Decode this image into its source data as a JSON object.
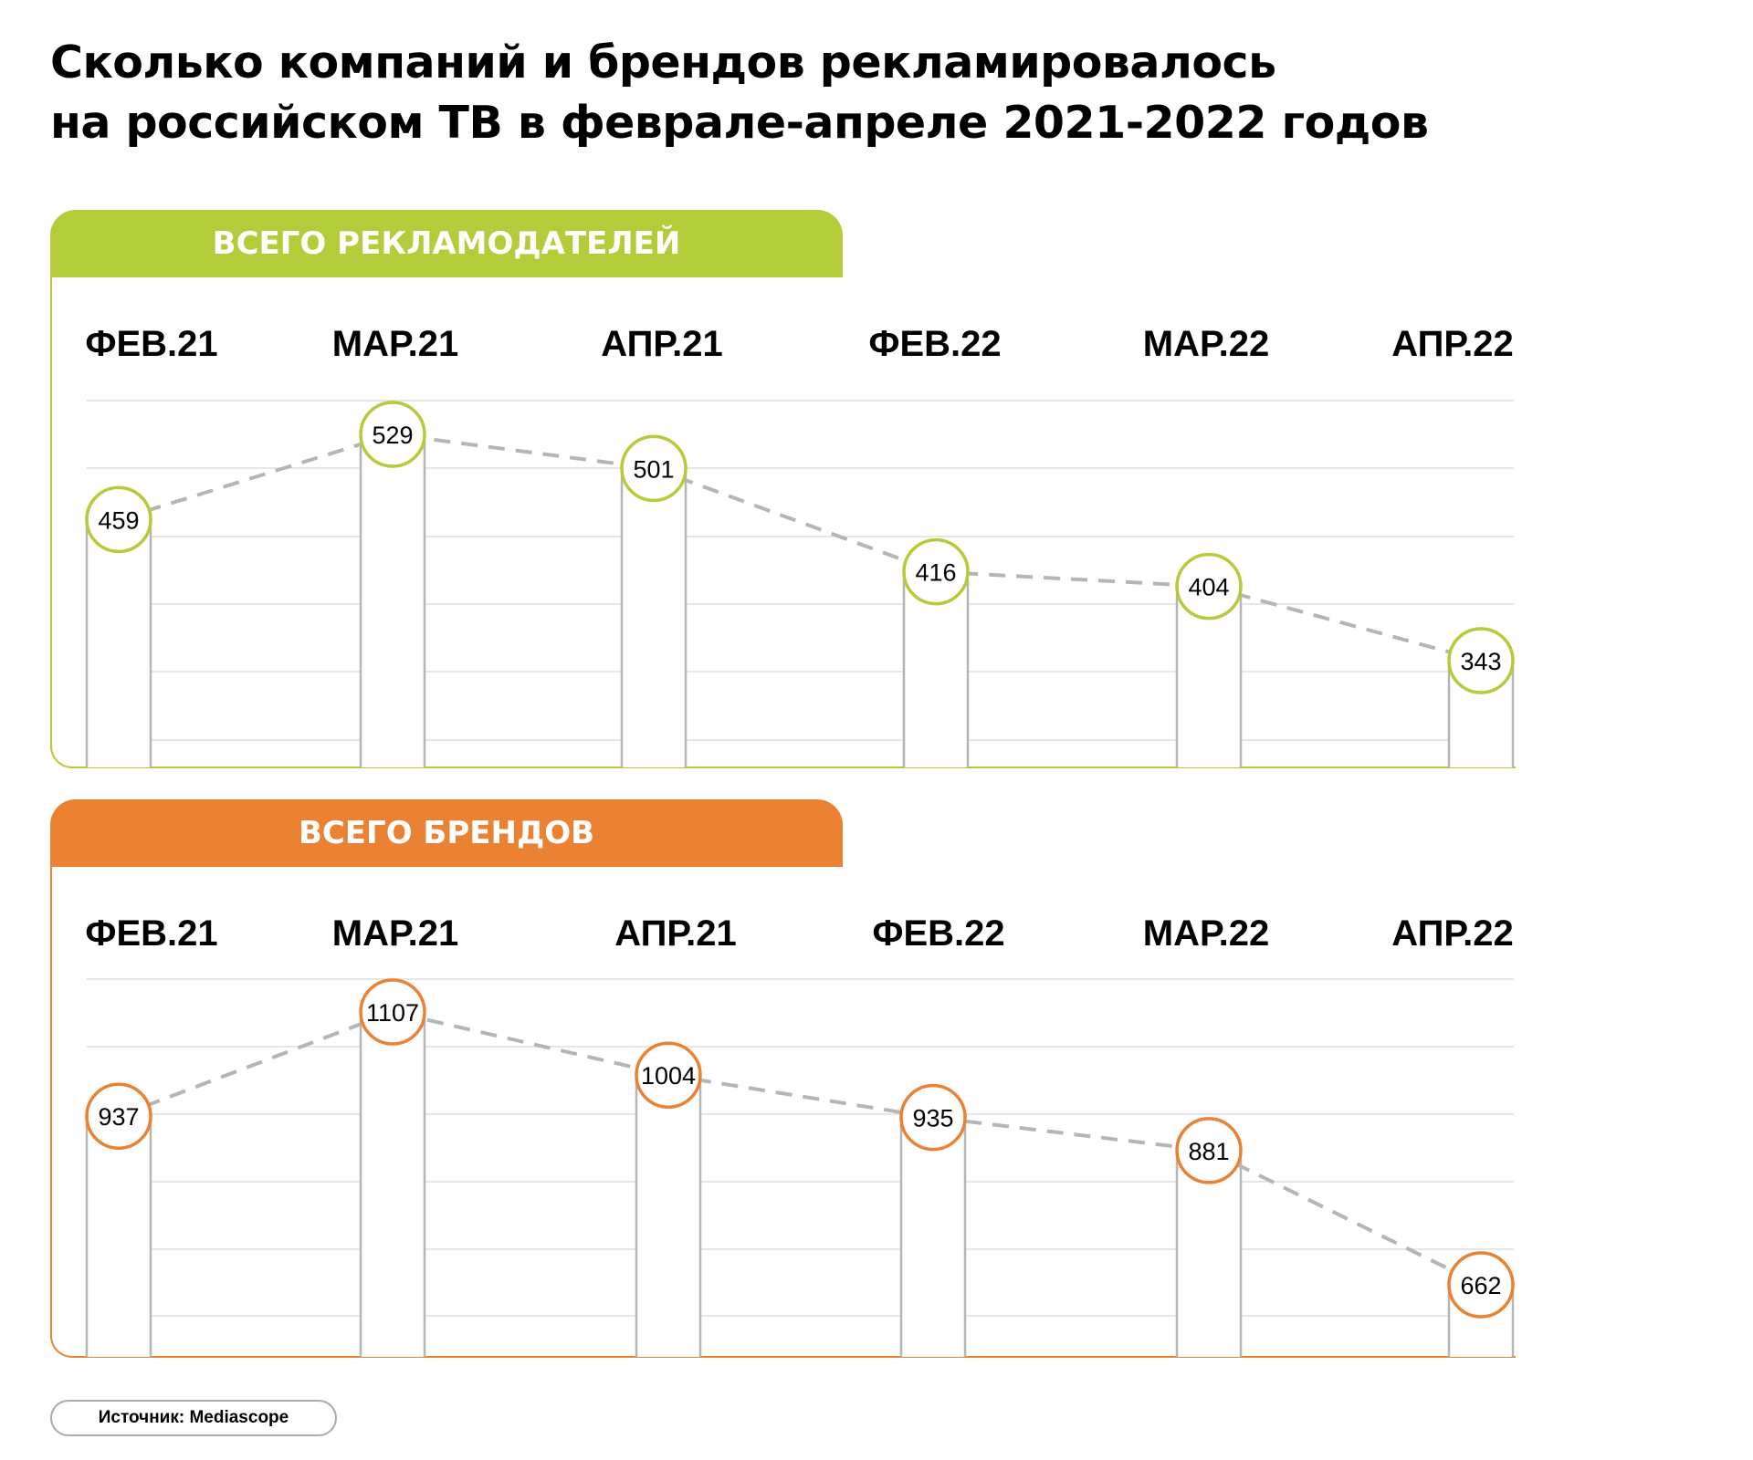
{
  "title_line1": "Сколько компаний и брендов рекламировалось",
  "title_line2": "на российском ТВ в феврале-апреле 2021-2022 годов",
  "source": "Источник: Mediascope",
  "chart_data": [
    {
      "type": "bar",
      "title": "ВСЕГО РЕКЛАМОДАТЕЛЕЙ",
      "color": "#b2cc3a",
      "categories": [
        "ФЕВ.21",
        "МАР.21",
        "АПР.21",
        "ФЕВ.22",
        "МАР.22",
        "АПР.22"
      ],
      "values": [
        459,
        529,
        501,
        416,
        404,
        343
      ],
      "labels": [
        "459",
        "529",
        "501",
        "416",
        "404",
        "343"
      ]
    },
    {
      "type": "bar",
      "title": "ВСЕГО БРЕНДОВ",
      "color": "#eb8133",
      "categories": [
        "ФЕВ.21",
        "МАР.21",
        "АПР.21",
        "ФЕВ.22",
        "МАР.22",
        "АПР.22"
      ],
      "values": [
        937,
        1107,
        1004,
        935,
        881,
        662
      ],
      "labels": [
        "937",
        "1107",
        "1004",
        "935",
        "881",
        "662"
      ]
    }
  ]
}
